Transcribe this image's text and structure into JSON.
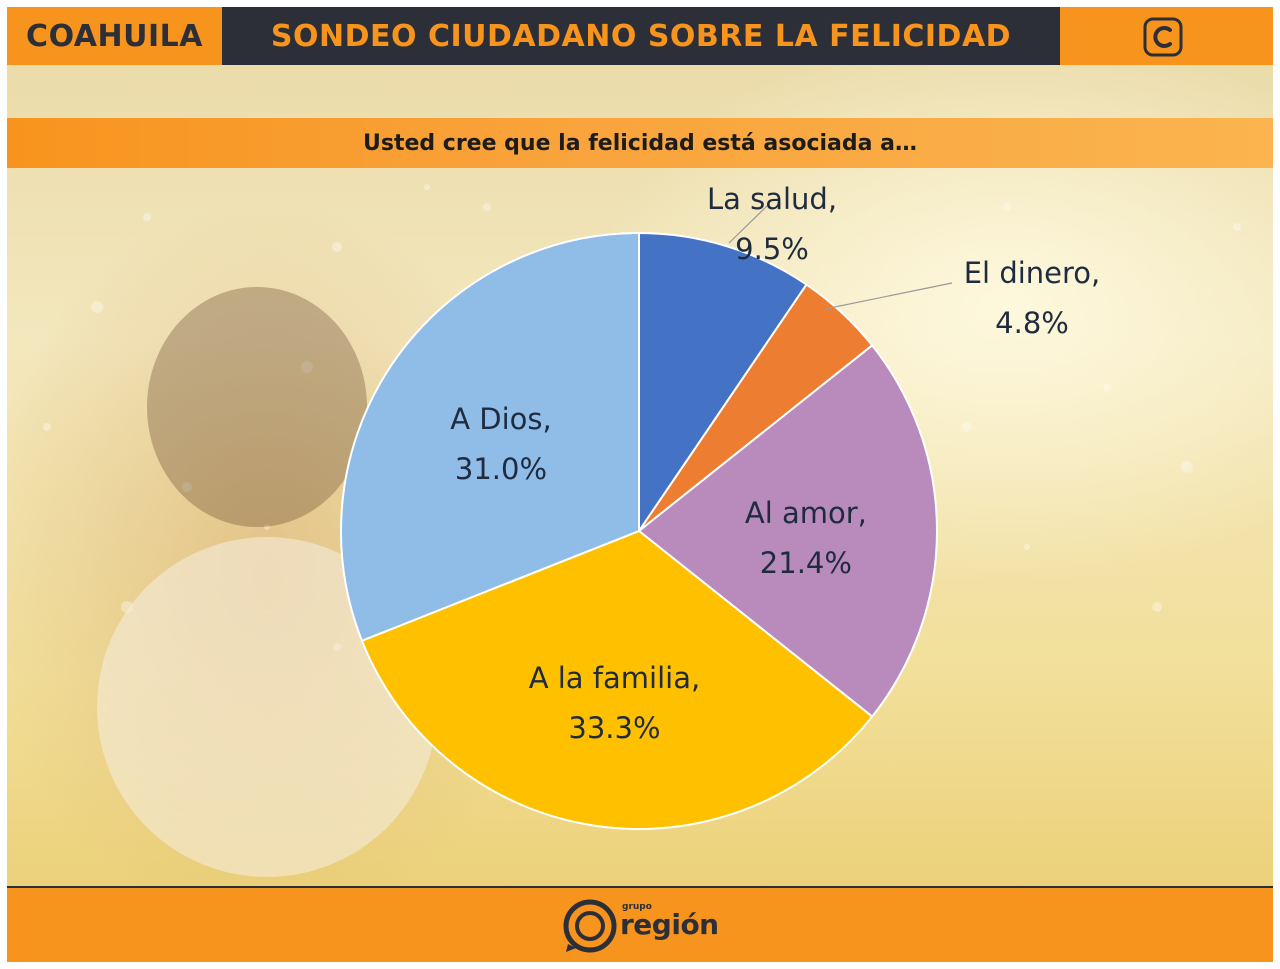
{
  "header": {
    "state": "COAHUILA",
    "title": "SONDEO CIUDADANO SOBRE LA FELICIDAD",
    "logo_icon": "c-logo-icon"
  },
  "question": "Usted cree que la felicidad está asociada a…",
  "footer": {
    "brand_small": "grupo",
    "brand_name": "región",
    "brand_icon": "region-logo-icon"
  },
  "colors": {
    "orange": "#f7941d",
    "dark": "#2d2f38",
    "label_text": "#1f2b3f"
  },
  "chart_data": {
    "type": "pie",
    "title": "Usted cree que la felicidad está asociada a…",
    "start": "12 o'clock, clockwise",
    "slices": [
      {
        "name": "La salud",
        "value": 9.5,
        "label": "La salud,",
        "value_label": "9.5%",
        "color": "#4472c4",
        "label_position": "outside"
      },
      {
        "name": "El dinero",
        "value": 4.8,
        "label": "El dinero,",
        "value_label": "4.8%",
        "color": "#ed7d31",
        "label_position": "outside"
      },
      {
        "name": "Al amor",
        "value": 21.4,
        "label": "Al amor,",
        "value_label": "21.4%",
        "color": "#b98abc",
        "label_position": "inside"
      },
      {
        "name": "A la familia",
        "value": 33.3,
        "label": "A la familia,",
        "value_label": "33.3%",
        "color": "#ffc000",
        "label_position": "inside"
      },
      {
        "name": "A Dios",
        "value": 31.0,
        "label": "A Dios,",
        "value_label": "31.0%",
        "color": "#8fbde8",
        "label_position": "inside"
      }
    ]
  }
}
